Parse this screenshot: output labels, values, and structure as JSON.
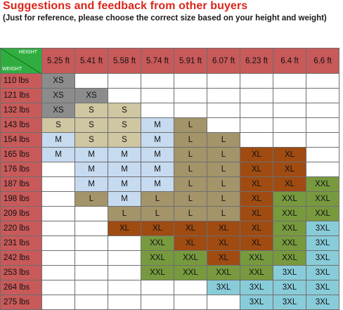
{
  "header": {
    "title": "Suggestions and feedback from other buyers",
    "subtitle": "(Just for reference, please choose the correct size based on your height and weight)"
  },
  "corner": {
    "height_label": "HEIGHT",
    "weight_label": "WEIGHT"
  },
  "heights": [
    "5.25 ft",
    "5.41 ft",
    "5.58 ft",
    "5.74 ft",
    "5.91 ft",
    "6.07 ft",
    "6.23 ft",
    "6.4 ft",
    "6.6 ft"
  ],
  "palette": {
    "XS": "#8c8c8c",
    "S": "#cfc6a2",
    "M": "#c6daf0",
    "L": "#a3946a",
    "XL": "#9f4b12",
    "XXL": "#789a3f",
    "3XL": "#89ccd9",
    "empty": "#ffffff",
    "header": "#c95a5a",
    "corner": "#2fae3f",
    "title": "#d9261c"
  },
  "rows": [
    {
      "weight": "110 lbs",
      "sizes": [
        "XS",
        "",
        "",
        "",
        "",
        "",
        "",
        "",
        ""
      ]
    },
    {
      "weight": "121 lbs",
      "sizes": [
        "XS",
        "XS",
        "",
        "",
        "",
        "",
        "",
        "",
        ""
      ]
    },
    {
      "weight": "132 lbs",
      "sizes": [
        "XS",
        "S",
        "S",
        "",
        "",
        "",
        "",
        "",
        ""
      ]
    },
    {
      "weight": "143 lbs",
      "sizes": [
        "S",
        "S",
        "S",
        "M",
        "L",
        "",
        "",
        "",
        ""
      ]
    },
    {
      "weight": "154 lbs",
      "sizes": [
        "M",
        "S",
        "S",
        "M",
        "L",
        "L",
        "",
        "",
        ""
      ]
    },
    {
      "weight": "165 lbs",
      "sizes": [
        "M",
        "M",
        "M",
        "M",
        "L",
        "L",
        "XL",
        "XL",
        ""
      ]
    },
    {
      "weight": "176 lbs",
      "sizes": [
        "",
        "M",
        "M",
        "M",
        "L",
        "L",
        "XL",
        "XL",
        ""
      ]
    },
    {
      "weight": "187 lbs",
      "sizes": [
        "",
        "M",
        "M",
        "M",
        "L",
        "L",
        "XL",
        "XL",
        "XXL"
      ]
    },
    {
      "weight": "198 lbs",
      "sizes": [
        "",
        "L",
        "M",
        "L",
        "L",
        "L",
        "XL",
        "XXL",
        "XXL"
      ]
    },
    {
      "weight": "209 lbs",
      "sizes": [
        "",
        "",
        "L",
        "L",
        "L",
        "L",
        "XL",
        "XXL",
        "XXL"
      ]
    },
    {
      "weight": "220 lbs",
      "sizes": [
        "",
        "",
        "XL",
        "XL",
        "XL",
        "XL",
        "XL",
        "XXL",
        "3XL"
      ]
    },
    {
      "weight": "231 lbs",
      "sizes": [
        "",
        "",
        "",
        "XXL",
        "XL",
        "XL",
        "XL",
        "XXL",
        "3XL"
      ]
    },
    {
      "weight": "242 lbs",
      "sizes": [
        "",
        "",
        "",
        "XXL",
        "XXL",
        "XL",
        "XXL",
        "XXL",
        "3XL"
      ]
    },
    {
      "weight": "253 lbs",
      "sizes": [
        "",
        "",
        "",
        "XXL",
        "XXL",
        "XXL",
        "XXL",
        "3XL",
        "3XL"
      ]
    },
    {
      "weight": "264 lbs",
      "sizes": [
        "",
        "",
        "",
        "",
        "",
        "3XL",
        "3XL",
        "3XL",
        "3XL"
      ]
    },
    {
      "weight": "275 lbs",
      "sizes": [
        "",
        "",
        "",
        "",
        "",
        "",
        "3XL",
        "3XL",
        "3XL"
      ]
    }
  ]
}
